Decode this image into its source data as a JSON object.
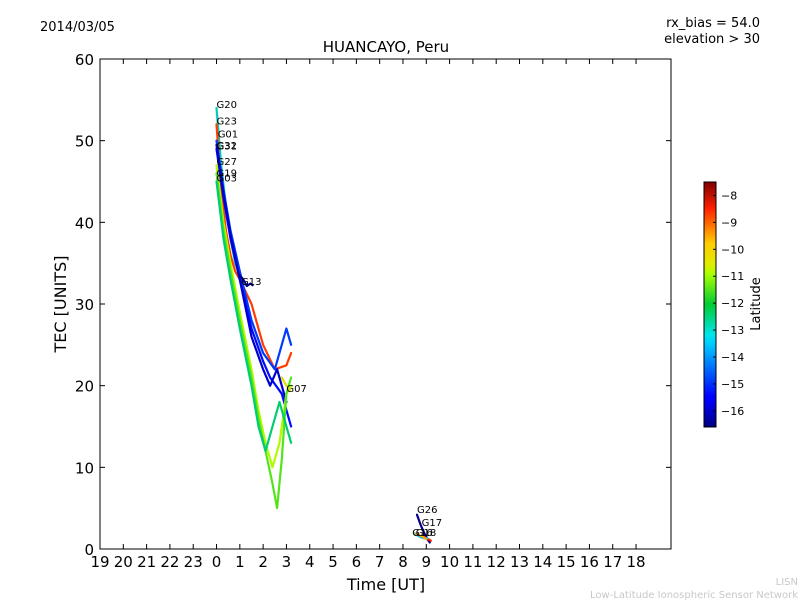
{
  "chart_data": {
    "type": "scatter",
    "title": "HUANCAYO, Peru",
    "date_label": "2014/03/05",
    "bias_label": "rx_bias = 54.0",
    "elevation_label": "elevation > 30",
    "xlabel": "Time [UT]",
    "ylabel": "TEC [UNITS]",
    "xlim": [
      19,
      43.5
    ],
    "ylim": [
      0,
      60
    ],
    "x_ticks": [
      19,
      20,
      21,
      22,
      23,
      24,
      25,
      26,
      27,
      28,
      29,
      30,
      31,
      32,
      33,
      34,
      35,
      36,
      37,
      38,
      39,
      40,
      41,
      42
    ],
    "x_tick_labels": [
      "19",
      "20",
      "21",
      "22",
      "23",
      "0",
      "1",
      "2",
      "3",
      "4",
      "5",
      "6",
      "7",
      "8",
      "9",
      "10",
      "11",
      "12",
      "13",
      "14",
      "15",
      "16",
      "17",
      "18"
    ],
    "y_ticks": [
      0,
      10,
      20,
      30,
      40,
      50,
      60
    ],
    "y_tick_labels": [
      "0",
      "10",
      "20",
      "30",
      "40",
      "50",
      "60"
    ],
    "colorbar": {
      "label": "Latitude",
      "range": [
        -16.6,
        -7.5
      ],
      "ticks": [
        -8,
        -9,
        -10,
        -11,
        -12,
        -13,
        -14,
        -15,
        -16
      ],
      "tick_labels": [
        "−8",
        "−9",
        "−10",
        "−11",
        "−12",
        "−13",
        "−14",
        "−15",
        "−16"
      ]
    },
    "series": [
      {
        "name": "G20",
        "lat": -13.0,
        "points": [
          [
            24.0,
            54.0
          ],
          [
            24.2,
            47.0
          ],
          [
            24.4,
            42.0
          ],
          [
            24.6,
            38.0
          ],
          [
            24.8,
            35.0
          ],
          [
            25.0,
            33.5
          ]
        ]
      },
      {
        "name": "G23",
        "lat": -8.7,
        "points": [
          [
            24.0,
            52.0
          ],
          [
            24.2,
            44.0
          ],
          [
            24.4,
            39.0
          ],
          [
            24.6,
            36.0
          ],
          [
            24.8,
            34.0
          ],
          [
            25.0,
            33.0
          ],
          [
            25.5,
            30.0
          ],
          [
            26.0,
            25.0
          ],
          [
            26.5,
            22.0
          ],
          [
            27.0,
            22.5
          ],
          [
            27.2,
            24.0
          ]
        ]
      },
      {
        "name": "G01",
        "lat": -15.0,
        "points": [
          [
            24.0,
            50.0
          ],
          [
            24.3,
            44.0
          ],
          [
            24.6,
            39.0
          ],
          [
            25.0,
            34.0
          ],
          [
            25.5,
            28.0
          ],
          [
            26.0,
            24.0
          ],
          [
            26.5,
            22.0
          ],
          [
            27.0,
            27.0
          ],
          [
            27.2,
            25.0
          ]
        ]
      },
      {
        "name": "G31",
        "lat": -15.5,
        "points": [
          [
            24.0,
            49.0
          ],
          [
            24.3,
            43.0
          ],
          [
            24.6,
            38.0
          ],
          [
            25.0,
            33.0
          ],
          [
            25.5,
            27.0
          ],
          [
            26.0,
            23.0
          ],
          [
            26.3,
            21.0
          ],
          [
            26.8,
            19.0
          ],
          [
            27.0,
            17.0
          ],
          [
            27.2,
            15.0
          ]
        ]
      },
      {
        "name": "G32",
        "lat": -16.0,
        "points": [
          [
            24.0,
            49.5
          ],
          [
            24.3,
            43.5
          ],
          [
            24.6,
            38.5
          ],
          [
            25.0,
            33.0
          ],
          [
            25.5,
            26.0
          ],
          [
            26.0,
            22.0
          ],
          [
            26.3,
            20.0
          ],
          [
            26.6,
            22.0
          ],
          [
            27.0,
            18.0
          ]
        ]
      },
      {
        "name": "G27",
        "lat": -10.8,
        "points": [
          [
            24.0,
            47.0
          ],
          [
            24.3,
            40.0
          ],
          [
            24.6,
            35.0
          ],
          [
            25.0,
            29.0
          ],
          [
            25.5,
            22.0
          ],
          [
            25.8,
            17.0
          ],
          [
            26.1,
            13.0
          ],
          [
            26.4,
            10.0
          ],
          [
            26.7,
            13.0
          ],
          [
            27.0,
            19.0
          ],
          [
            27.2,
            20.0
          ]
        ]
      },
      {
        "name": "G19",
        "lat": -11.5,
        "points": [
          [
            24.0,
            46.0
          ],
          [
            24.3,
            39.0
          ],
          [
            24.6,
            34.0
          ],
          [
            25.0,
            28.0
          ],
          [
            25.5,
            21.0
          ],
          [
            25.8,
            16.0
          ],
          [
            26.1,
            12.0
          ],
          [
            26.4,
            8.0
          ],
          [
            26.6,
            5.0
          ],
          [
            26.8,
            11.0
          ],
          [
            27.0,
            19.0
          ],
          [
            27.2,
            21.0
          ]
        ]
      },
      {
        "name": "G03",
        "lat": -12.5,
        "points": [
          [
            24.0,
            45.0
          ],
          [
            24.3,
            38.0
          ],
          [
            24.6,
            33.0
          ],
          [
            25.0,
            27.0
          ],
          [
            25.5,
            20.0
          ],
          [
            25.8,
            15.0
          ],
          [
            26.1,
            12.0
          ],
          [
            26.4,
            15.0
          ],
          [
            26.7,
            18.0
          ],
          [
            27.0,
            15.0
          ],
          [
            27.2,
            13.0
          ]
        ]
      },
      {
        "name": "G13",
        "lat": -16.5,
        "points": [
          [
            25.0,
            33.5
          ],
          [
            25.15,
            33.0
          ],
          [
            25.3,
            32.2
          ],
          [
            25.45,
            32.5
          ],
          [
            25.55,
            32.3
          ]
        ]
      },
      {
        "name": "G07",
        "lat": -10.2,
        "points": [
          [
            26.8,
            21.0
          ],
          [
            27.0,
            20.0
          ],
          [
            27.15,
            19.5
          ]
        ]
      },
      {
        "name": "G26",
        "lat": -16.5,
        "points": [
          [
            32.6,
            4.2
          ],
          [
            32.75,
            3.0
          ],
          [
            32.9,
            2.0
          ],
          [
            33.05,
            1.2
          ],
          [
            33.15,
            0.8
          ]
        ]
      },
      {
        "name": "G17",
        "lat": -8.5,
        "points": [
          [
            32.8,
            1.6
          ],
          [
            32.95,
            1.4
          ],
          [
            33.1,
            1.2
          ],
          [
            33.2,
            1.0
          ]
        ]
      },
      {
        "name": "G16",
        "lat": -13.5,
        "points": [
          [
            32.5,
            1.9
          ],
          [
            32.65,
            1.6
          ],
          [
            32.8,
            1.4
          ],
          [
            32.95,
            1.3
          ],
          [
            33.05,
            1.3
          ]
        ]
      },
      {
        "name": "G18",
        "lat": -9.5,
        "points": [
          [
            32.55,
            1.9
          ],
          [
            32.7,
            1.7
          ],
          [
            32.85,
            1.5
          ],
          [
            33.0,
            1.2
          ]
        ]
      }
    ],
    "annotations": [
      {
        "text": "G20",
        "x": 24.0,
        "y": 54.0
      },
      {
        "text": "G23",
        "x": 24.0,
        "y": 52.0
      },
      {
        "text": "G01",
        "x": 24.05,
        "y": 50.4
      },
      {
        "text": "G32",
        "x": 24.0,
        "y": 49.0
      },
      {
        "text": "G31",
        "x": 24.0,
        "y": 48.9
      },
      {
        "text": "G27",
        "x": 24.0,
        "y": 47.0
      },
      {
        "text": "G19",
        "x": 24.0,
        "y": 45.6
      },
      {
        "text": "G03",
        "x": 24.0,
        "y": 45.0
      },
      {
        "text": "G13",
        "x": 25.05,
        "y": 32.3
      },
      {
        "text": "G07",
        "x": 27.0,
        "y": 19.2
      },
      {
        "text": "G26",
        "x": 32.6,
        "y": 4.4
      },
      {
        "text": "G17",
        "x": 32.8,
        "y": 2.8
      },
      {
        "text": "G18",
        "x": 32.55,
        "y": 1.6
      },
      {
        "text": "G16",
        "x": 32.4,
        "y": 1.6
      }
    ]
  },
  "footer": {
    "line1": "LISN",
    "line2": "Low-Latitude Ionospheric Sensor Network"
  }
}
